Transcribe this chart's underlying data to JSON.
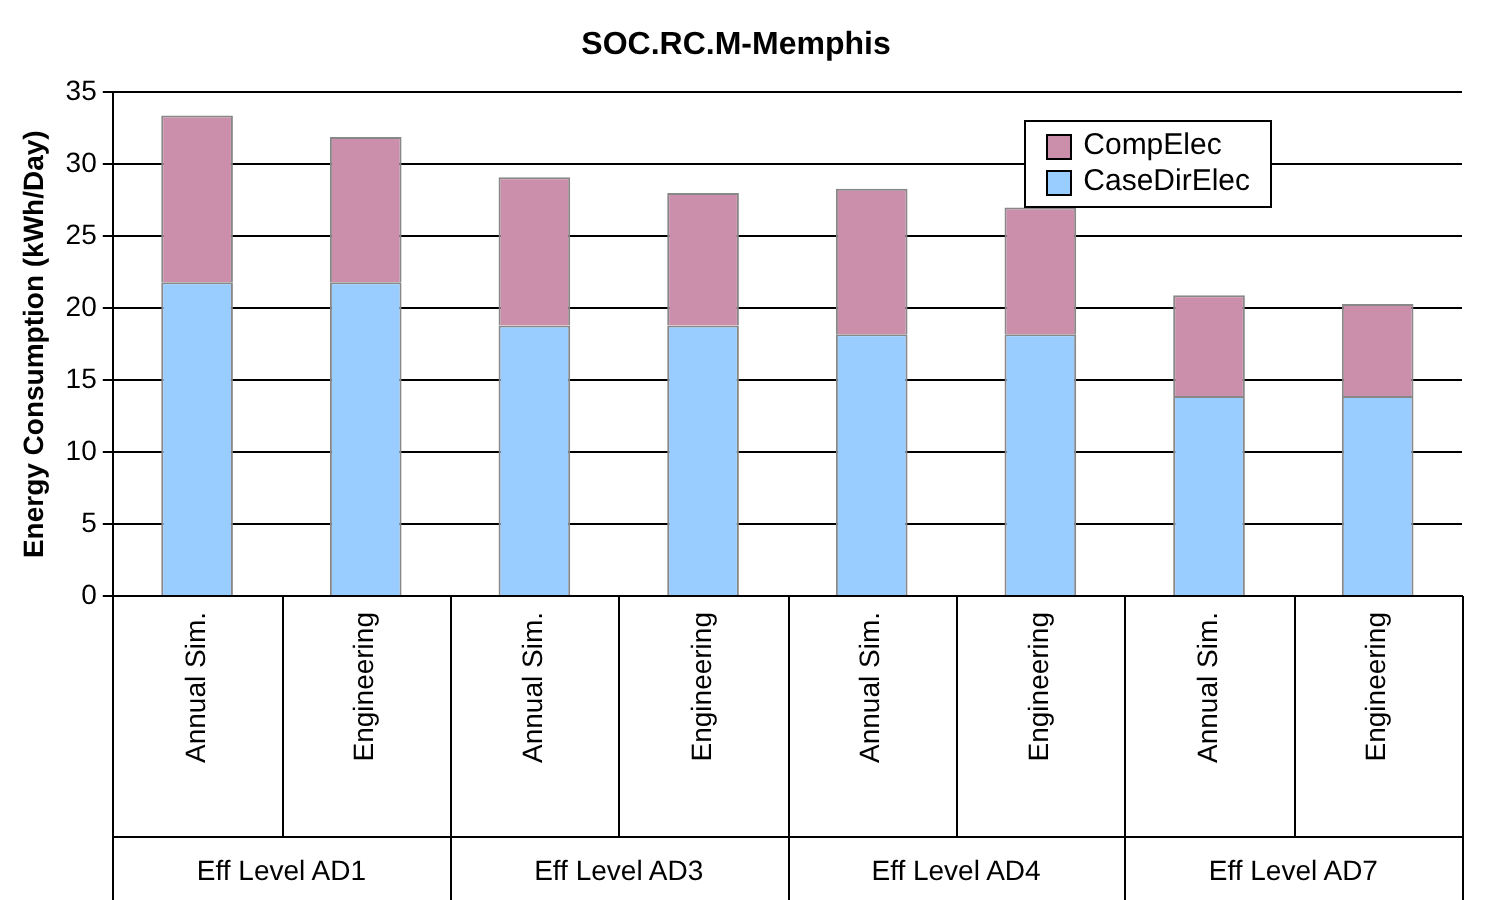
{
  "chart_data": {
    "type": "bar",
    "stacked": true,
    "title": "SOC.RC.M-Memphis",
    "ylabel": "Energy Consumption (kWh/Day)",
    "categories": [
      "Annual Sim.",
      "Engineering",
      "Annual Sim.",
      "Engineering",
      "Annual Sim.",
      "Engineering",
      "Annual Sim.",
      "Engineering"
    ],
    "series": [
      {
        "name": "CaseDirElec",
        "color": "#99ccff",
        "values": [
          21.8,
          21.8,
          18.8,
          18.8,
          18.2,
          18.2,
          13.9,
          13.9
        ]
      },
      {
        "name": "CompElec",
        "color": "#cc8fab",
        "values": [
          11.6,
          10.1,
          10.3,
          9.2,
          10.1,
          8.8,
          7.0,
          6.4
        ]
      }
    ],
    "annotations": [
      "Eff Level AD1",
      "Eff Level AD3",
      "Eff Level AD4",
      "Eff Level AD7"
    ],
    "ylim": [
      0,
      35
    ],
    "yticks": [
      0,
      5,
      10,
      15,
      20,
      25,
      30,
      35
    ],
    "grid": "y",
    "legend": "top right"
  }
}
